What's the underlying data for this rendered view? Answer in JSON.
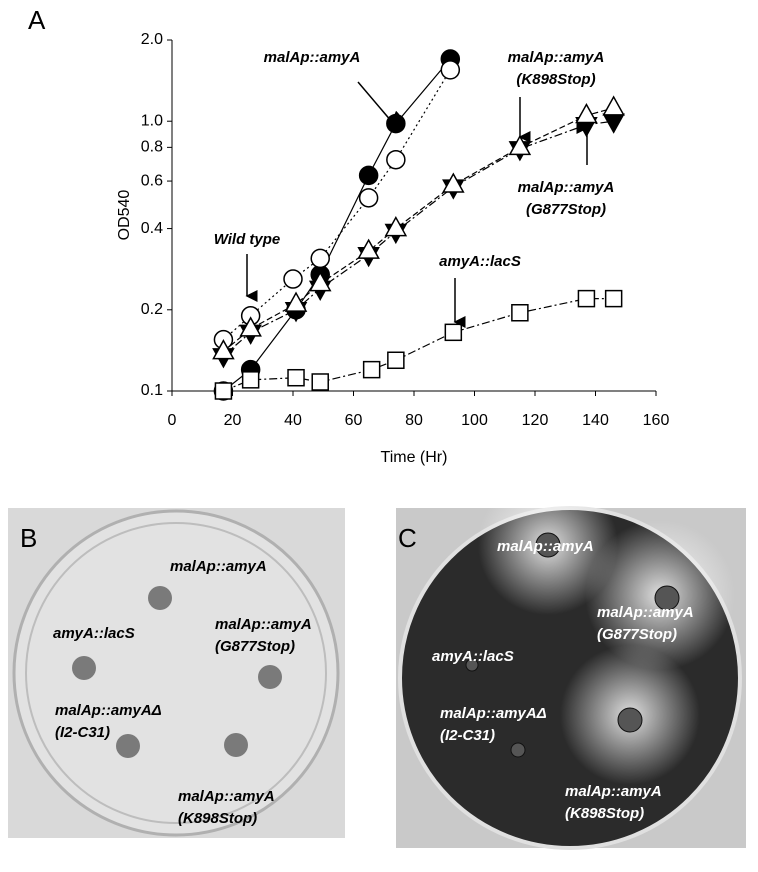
{
  "chart_data": {
    "type": "line",
    "panel_label": "A",
    "y_label": "OD540",
    "x_label": "Time (Hr)",
    "log_y": true,
    "xlim": [
      0,
      160
    ],
    "xticks": [
      0,
      20,
      40,
      60,
      80,
      100,
      120,
      140,
      160
    ],
    "ylim": [
      0.1,
      2.0
    ],
    "yticks": [
      {
        "value": 0.1,
        "label": "0.1"
      },
      {
        "value": 0.2,
        "label": "0.2"
      },
      {
        "value": 0.4,
        "label": "0.4"
      },
      {
        "value": 0.6,
        "label": "0.6"
      },
      {
        "value": 0.8,
        "label": "0.8"
      },
      {
        "value": 1,
        "label": "1.0"
      },
      {
        "value": 2,
        "label": "2.0"
      }
    ],
    "series": [
      {
        "name": "malAp::amyA",
        "marker": "circle",
        "fill": "#000000",
        "dash": "",
        "x": [
          17,
          26,
          41,
          49,
          65,
          74,
          92
        ],
        "values": [
          0.1,
          0.12,
          0.2,
          0.27,
          0.63,
          0.98,
          1.7
        ]
      },
      {
        "name": "Wild type",
        "marker": "circle",
        "fill": "#ffffff",
        "dash": "2,3",
        "x": [
          17,
          26,
          40,
          49,
          65,
          74,
          92
        ],
        "values": [
          0.155,
          0.19,
          0.26,
          0.31,
          0.52,
          0.72,
          1.55
        ]
      },
      {
        "name": "malAp::amyA (G877Stop)",
        "marker": "tri-down",
        "fill": "#000000",
        "dash": "8,3,2,3",
        "x": [
          17,
          26,
          41,
          49,
          65,
          74,
          93,
          115,
          137,
          146
        ],
        "values": [
          0.135,
          0.165,
          0.2,
          0.24,
          0.32,
          0.39,
          0.57,
          0.79,
          0.97,
          1.0
        ]
      },
      {
        "name": "malAp::amyA (K898Stop)",
        "marker": "tri-up",
        "fill": "#ffffff",
        "dash": "6,3",
        "x": [
          17,
          26,
          41,
          49,
          65,
          74,
          93,
          115,
          137,
          146
        ],
        "values": [
          0.14,
          0.17,
          0.21,
          0.25,
          0.33,
          0.4,
          0.58,
          0.8,
          1.05,
          1.12
        ]
      },
      {
        "name": "amyA::lacS",
        "marker": "square",
        "fill": "#ffffff",
        "dash": "8,3,2,3",
        "x": [
          17,
          26,
          41,
          49,
          66,
          74,
          93,
          115,
          137,
          146
        ],
        "values": [
          0.1,
          0.11,
          0.112,
          0.108,
          0.12,
          0.13,
          0.165,
          0.195,
          0.22,
          0.22
        ]
      }
    ],
    "annotations": [
      [
        "malAp::amyA"
      ],
      [
        "malAp::amyA",
        "(K898Stop)"
      ],
      [
        "malAp::amyA",
        "(G877Stop)"
      ],
      [
        "Wild type"
      ],
      [
        "amyA::lacS"
      ]
    ]
  },
  "panels": [
    {
      "label": "B",
      "texts": [
        [
          "malAp::amyA"
        ],
        [
          "amyA::lacS"
        ],
        [
          "malAp::amyA",
          "(G877Stop)"
        ],
        [
          "malAp::amyAΔ",
          "(I2-C31)"
        ],
        [
          "malAp::amyA",
          "(K898Stop)"
        ]
      ]
    },
    {
      "label": "C",
      "texts": [
        [
          "malAp::amyA"
        ],
        [
          "malAp::amyA",
          "(G877Stop)"
        ],
        [
          "amyA::lacS"
        ],
        [
          "malAp::amyAΔ",
          "(I2-C31)"
        ],
        [
          "malAp::amyA",
          "(K898Stop)"
        ]
      ]
    }
  ]
}
